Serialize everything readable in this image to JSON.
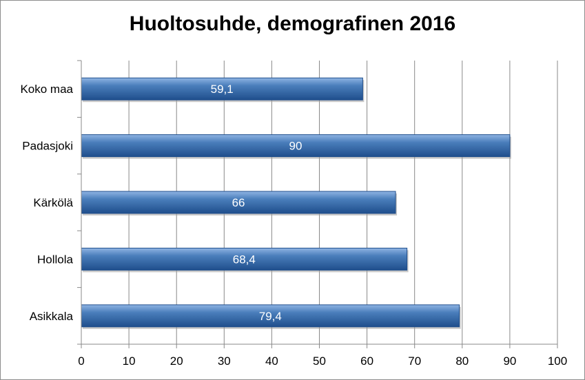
{
  "chart_data": {
    "type": "bar",
    "orientation": "horizontal",
    "title": "Huoltosuhde, demografinen 2016",
    "categories": [
      "Koko maa",
      "Padasjoki",
      "Kärkölä",
      "Hollola",
      "Asikkala"
    ],
    "values": [
      59.1,
      90,
      66,
      68.4,
      79.4
    ],
    "data_labels": [
      "59,1",
      "90",
      "66",
      "68,4",
      "79,4"
    ],
    "xlim": [
      0,
      100
    ],
    "xticks": [
      0,
      10,
      20,
      30,
      40,
      50,
      60,
      70,
      80,
      90,
      100
    ],
    "grid": true,
    "legend": "none",
    "colors": {
      "bar": "#4a7ebb",
      "bar_light": "#8fb4e3",
      "bar_dark": "#1f4e8c",
      "grid": "#888888"
    }
  }
}
